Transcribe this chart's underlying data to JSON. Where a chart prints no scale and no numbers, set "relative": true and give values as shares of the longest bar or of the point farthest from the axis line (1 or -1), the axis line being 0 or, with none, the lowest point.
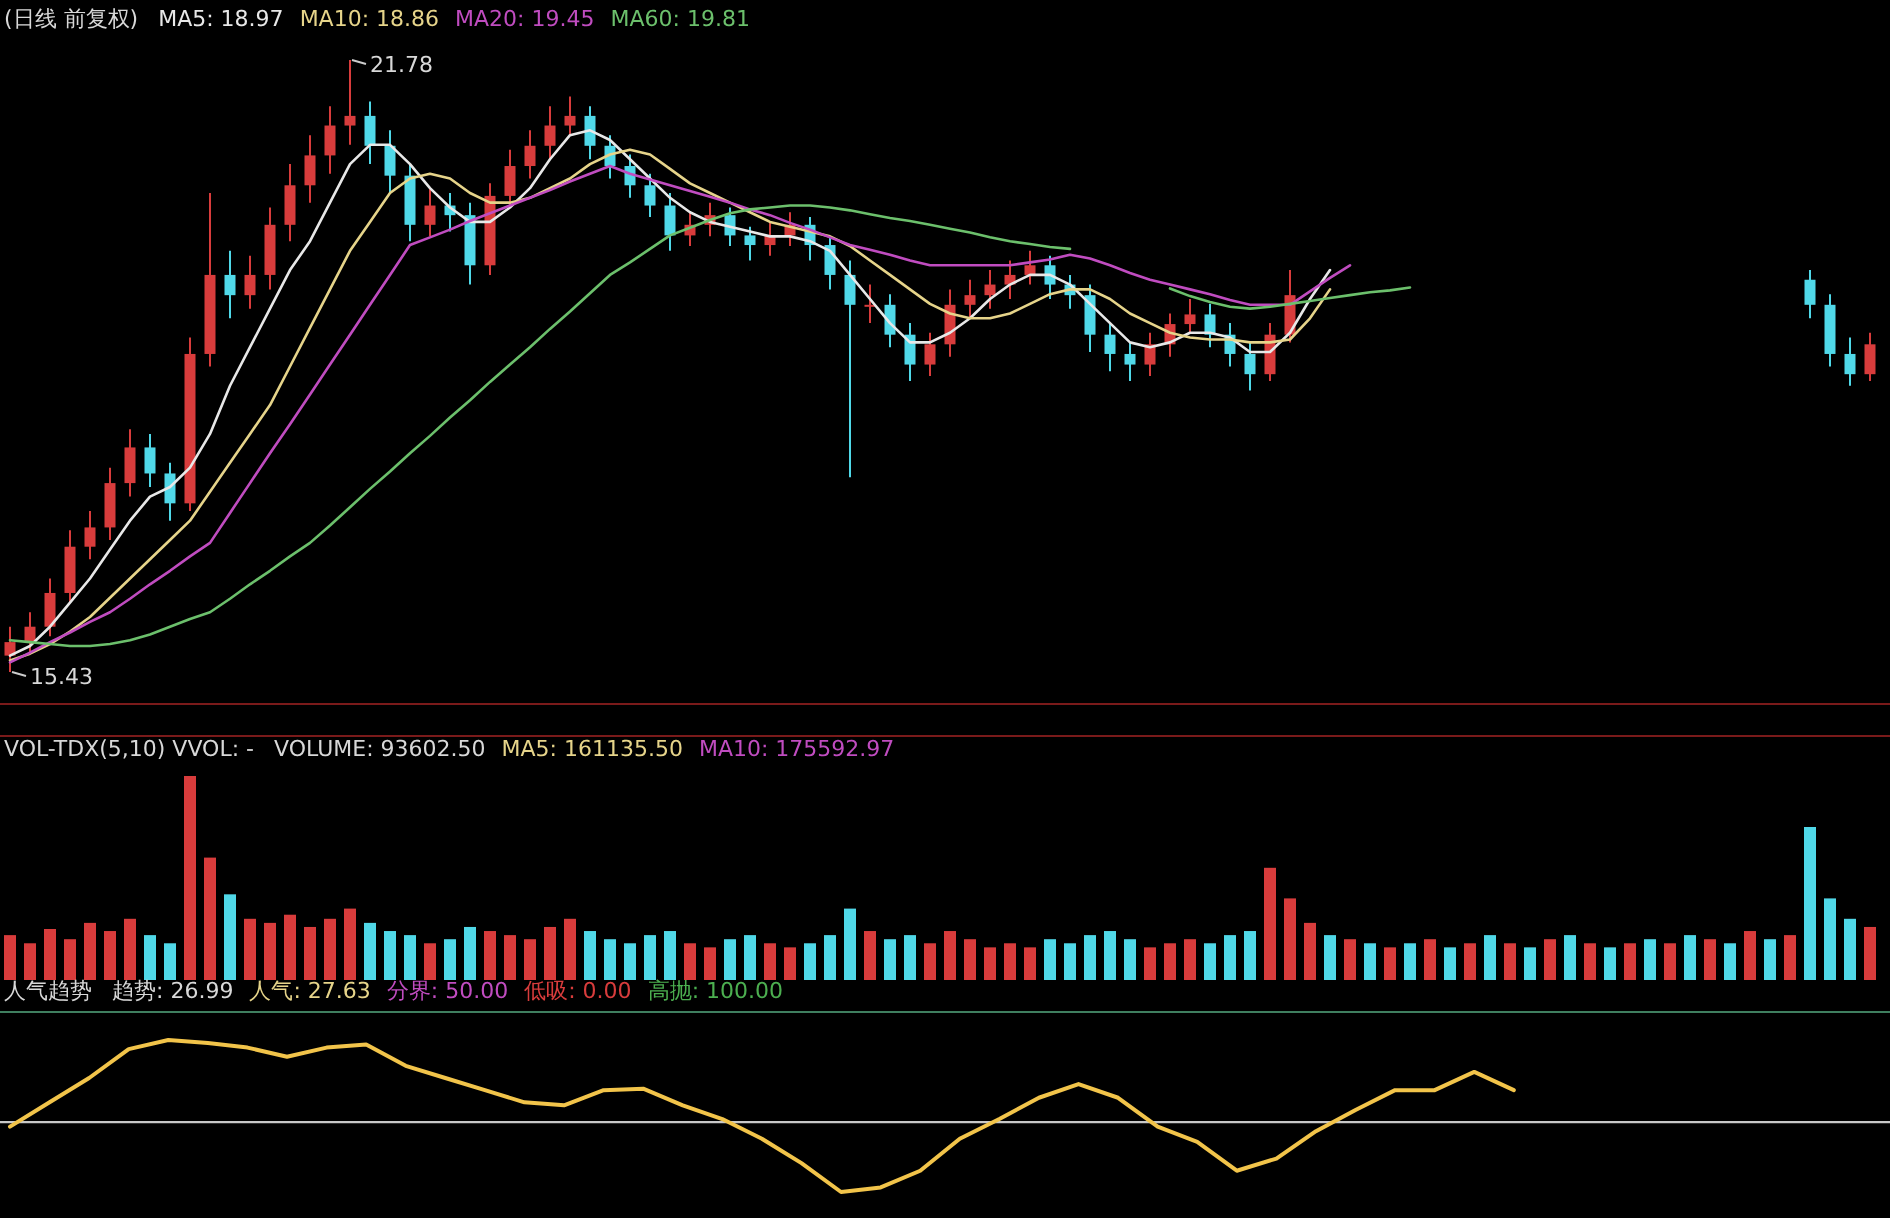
{
  "chart_data": [
    {
      "type": "candlestick",
      "title": "(日线 前复权)",
      "legend": "top left",
      "categories": [
        null,
        null,
        null,
        null,
        null,
        null,
        null,
        null,
        null,
        null,
        null,
        null,
        null,
        null,
        null,
        null,
        null,
        null,
        null,
        null,
        null,
        null,
        null,
        null,
        null,
        null,
        null,
        null,
        null,
        null,
        null,
        null,
        null,
        null,
        null,
        null,
        null,
        null,
        null,
        null,
        null,
        null,
        null,
        null,
        null,
        null,
        null,
        null,
        null,
        null,
        null,
        null,
        null,
        null,
        null,
        null,
        null,
        null,
        null,
        null,
        null,
        null,
        null,
        null,
        null,
        null,
        null,
        null,
        null,
        null,
        null,
        null,
        null,
        null,
        null,
        null,
        null,
        null,
        null,
        null,
        null,
        null,
        null,
        null,
        null,
        null,
        null,
        null,
        null,
        null,
        null,
        null,
        null,
        null
      ],
      "ohlc": [
        [
          15.6,
          15.9,
          15.43,
          15.74
        ],
        [
          15.74,
          16.05,
          15.62,
          15.9
        ],
        [
          15.9,
          16.4,
          15.8,
          16.25
        ],
        [
          16.25,
          16.9,
          16.15,
          16.73
        ],
        [
          16.73,
          17.1,
          16.6,
          16.93
        ],
        [
          16.93,
          17.55,
          16.8,
          17.39
        ],
        [
          17.39,
          17.95,
          17.25,
          17.76
        ],
        [
          17.76,
          17.9,
          17.35,
          17.49
        ],
        [
          17.49,
          17.6,
          17.0,
          17.18
        ],
        [
          17.18,
          18.9,
          17.1,
          18.73
        ],
        [
          18.73,
          20.4,
          18.6,
          19.55
        ],
        [
          19.55,
          19.8,
          19.1,
          19.34
        ],
        [
          19.34,
          19.75,
          19.2,
          19.55
        ],
        [
          19.55,
          20.25,
          19.4,
          20.07
        ],
        [
          20.07,
          20.7,
          19.9,
          20.48
        ],
        [
          20.48,
          21.0,
          20.3,
          20.79
        ],
        [
          20.79,
          21.3,
          20.6,
          21.1
        ],
        [
          21.1,
          21.78,
          20.9,
          21.2
        ],
        [
          21.2,
          21.35,
          20.7,
          20.89
        ],
        [
          20.89,
          21.05,
          20.4,
          20.58
        ],
        [
          20.58,
          20.7,
          19.9,
          20.07
        ],
        [
          20.07,
          20.45,
          19.95,
          20.27
        ],
        [
          20.27,
          20.4,
          20.0,
          20.17
        ],
        [
          20.17,
          20.3,
          19.45,
          19.65
        ],
        [
          19.65,
          20.5,
          19.55,
          20.37
        ],
        [
          20.37,
          20.85,
          20.25,
          20.68
        ],
        [
          20.68,
          21.05,
          20.55,
          20.89
        ],
        [
          20.89,
          21.3,
          20.75,
          21.1
        ],
        [
          21.1,
          21.4,
          21.0,
          21.2
        ],
        [
          21.2,
          21.3,
          20.75,
          20.89
        ],
        [
          20.89,
          21.0,
          20.55,
          20.68
        ],
        [
          20.68,
          20.8,
          20.35,
          20.48
        ],
        [
          20.48,
          20.6,
          20.15,
          20.27
        ],
        [
          20.27,
          20.4,
          19.8,
          19.96
        ],
        [
          19.96,
          20.2,
          19.85,
          20.07
        ],
        [
          20.07,
          20.3,
          19.95,
          20.17
        ],
        [
          20.17,
          20.25,
          19.85,
          19.96
        ],
        [
          19.96,
          20.05,
          19.7,
          19.86
        ],
        [
          19.86,
          20.1,
          19.75,
          19.96
        ],
        [
          19.96,
          20.2,
          19.85,
          20.07
        ],
        [
          20.07,
          20.15,
          19.7,
          19.86
        ],
        [
          19.86,
          19.95,
          19.4,
          19.55
        ],
        [
          19.55,
          19.7,
          17.45,
          19.24
        ],
        [
          19.24,
          19.45,
          19.05,
          19.24
        ],
        [
          19.24,
          19.35,
          18.8,
          18.93
        ],
        [
          18.93,
          19.05,
          18.45,
          18.62
        ],
        [
          18.62,
          18.95,
          18.5,
          18.83
        ],
        [
          18.83,
          19.4,
          18.7,
          19.24
        ],
        [
          19.24,
          19.5,
          19.1,
          19.34
        ],
        [
          19.34,
          19.6,
          19.2,
          19.45
        ],
        [
          19.45,
          19.7,
          19.3,
          19.55
        ],
        [
          19.55,
          19.8,
          19.45,
          19.65
        ],
        [
          19.65,
          19.75,
          19.3,
          19.45
        ],
        [
          19.45,
          19.55,
          19.2,
          19.34
        ],
        [
          19.34,
          19.45,
          18.75,
          18.93
        ],
        [
          18.93,
          19.05,
          18.55,
          18.73
        ],
        [
          18.73,
          18.85,
          18.45,
          18.62
        ],
        [
          18.62,
          18.95,
          18.5,
          18.83
        ],
        [
          18.83,
          19.15,
          18.7,
          19.04
        ],
        [
          19.04,
          19.3,
          18.95,
          19.14
        ],
        [
          19.14,
          19.25,
          18.8,
          18.93
        ],
        [
          18.93,
          19.05,
          18.6,
          18.73
        ],
        [
          18.73,
          18.85,
          18.35,
          18.52
        ],
        [
          18.52,
          19.05,
          18.45,
          18.93
        ],
        [
          18.93,
          19.6,
          18.85,
          19.34
        ],
        null,
        null,
        null,
        null,
        null,
        null,
        null,
        null,
        null,
        null,
        null,
        null,
        null,
        null,
        null,
        null,
        null,
        null,
        null,
        null,
        null,
        null,
        null,
        null,
        null,
        [
          19.5,
          19.6,
          19.1,
          19.24
        ],
        [
          19.24,
          19.35,
          18.6,
          18.73
        ],
        [
          18.73,
          18.9,
          18.4,
          18.52
        ],
        [
          18.52,
          18.95,
          18.45,
          18.83
        ]
      ],
      "series": [
        {
          "name": "MA5: 18.97",
          "type": "line",
          "color": "#e8e8e8",
          "values": [
            15.6,
            15.7,
            15.9,
            16.15,
            16.4,
            16.7,
            17.0,
            17.25,
            17.35,
            17.55,
            17.9,
            18.4,
            18.8,
            19.2,
            19.6,
            19.9,
            20.3,
            20.7,
            20.9,
            20.9,
            20.7,
            20.45,
            20.25,
            20.1,
            20.1,
            20.25,
            20.45,
            20.75,
            21.0,
            21.05,
            20.95,
            20.75,
            20.55,
            20.35,
            20.2,
            20.1,
            20.05,
            20.0,
            19.95,
            19.95,
            19.9,
            19.8,
            19.55,
            19.3,
            19.05,
            18.85,
            18.85,
            18.95,
            19.1,
            19.3,
            19.45,
            19.55,
            19.55,
            19.45,
            19.25,
            19.05,
            18.85,
            18.8,
            18.85,
            18.95,
            18.95,
            18.9,
            18.75,
            18.75,
            18.95,
            19.3,
            19.6,
            null,
            null,
            null,
            null,
            null,
            null,
            null,
            null,
            null,
            null,
            null,
            null,
            null,
            null,
            null,
            null,
            null,
            null,
            null,
            null,
            null,
            null,
            null,
            null,
            null,
            null,
            null
          ]
        },
        {
          "name": "MA10: 18.86",
          "type": "line",
          "color": "#e6d48a",
          "values": [
            15.55,
            15.62,
            15.72,
            15.85,
            16.0,
            16.2,
            16.4,
            16.6,
            16.8,
            17.0,
            17.3,
            17.6,
            17.9,
            18.2,
            18.6,
            19.0,
            19.4,
            19.8,
            20.1,
            20.4,
            20.55,
            20.6,
            20.55,
            20.4,
            20.3,
            20.3,
            20.35,
            20.45,
            20.55,
            20.7,
            20.8,
            20.85,
            20.8,
            20.65,
            20.5,
            20.4,
            20.3,
            20.2,
            20.1,
            20.05,
            20.0,
            19.95,
            19.85,
            19.7,
            19.55,
            19.4,
            19.25,
            19.15,
            19.1,
            19.1,
            19.15,
            19.25,
            19.35,
            19.4,
            19.4,
            19.3,
            19.15,
            19.05,
            18.95,
            18.9,
            18.88,
            18.88,
            18.85,
            18.85,
            18.88,
            19.1,
            19.4,
            null,
            null,
            null,
            null,
            null,
            null,
            null,
            null,
            null,
            null,
            null,
            null,
            null,
            null,
            null,
            null,
            null,
            null,
            null,
            null,
            null,
            null,
            null,
            null,
            null,
            null,
            null
          ]
        },
        {
          "name": "MA20: 19.45",
          "type": "line",
          "color": "#c04cc0",
          "values": [
            15.53,
            15.63,
            15.74,
            15.84,
            15.95,
            16.05,
            16.19,
            16.34,
            16.48,
            16.63,
            16.77,
            17.08,
            17.39,
            17.7,
            18.0,
            18.31,
            18.62,
            18.93,
            19.24,
            19.55,
            19.86,
            19.94,
            20.02,
            20.11,
            20.19,
            20.27,
            20.35,
            20.43,
            20.52,
            20.6,
            20.68,
            20.6,
            20.54,
            20.48,
            20.42,
            20.36,
            20.3,
            20.23,
            20.17,
            20.09,
            20.02,
            19.94,
            19.86,
            19.81,
            19.76,
            19.7,
            19.65,
            19.65,
            19.65,
            19.65,
            19.65,
            19.68,
            19.71,
            19.76,
            19.72,
            19.65,
            19.57,
            19.5,
            19.45,
            19.4,
            19.35,
            19.29,
            19.24,
            19.24,
            19.24,
            19.38,
            19.52,
            19.65,
            null,
            null,
            null,
            null,
            null,
            null,
            null,
            null,
            null,
            null,
            null,
            null,
            null,
            null,
            null,
            null,
            null,
            null,
            null,
            null,
            null,
            null,
            null,
            null,
            null,
            null
          ]
        },
        {
          "name": "MA60: 19.81",
          "type": "line",
          "color": "#6cc06c",
          "values": [
            15.76,
            15.74,
            15.72,
            15.7,
            15.7,
            15.72,
            15.76,
            15.82,
            15.9,
            15.98,
            16.05,
            16.19,
            16.34,
            16.48,
            16.63,
            16.77,
            16.95,
            17.14,
            17.33,
            17.51,
            17.7,
            17.88,
            18.07,
            18.25,
            18.44,
            18.62,
            18.8,
            18.99,
            19.17,
            19.36,
            19.55,
            19.68,
            19.82,
            19.96,
            20.04,
            20.12,
            20.19,
            20.23,
            20.25,
            20.27,
            20.27,
            20.25,
            20.22,
            20.18,
            20.14,
            20.11,
            20.07,
            20.03,
            19.99,
            19.94,
            19.9,
            19.87,
            19.84,
            19.82,
            null,
            null,
            null,
            null,
            19.41,
            19.33,
            19.27,
            19.22,
            19.2,
            19.22,
            19.25,
            19.28,
            19.31,
            19.34,
            19.37,
            19.39,
            19.42,
            null,
            null,
            null,
            null,
            null,
            null,
            null,
            null,
            null,
            null,
            null,
            null,
            null,
            null,
            null,
            null,
            null,
            null,
            null,
            null,
            null,
            null,
            null
          ]
        }
      ],
      "annotations": [
        "21.78",
        "15.43"
      ]
    },
    {
      "type": "bar",
      "relative": true,
      "title": "VOL-TDX(5,10) VVOL: -",
      "annotations": [
        "VOLUME: 93602.50",
        "MA5: 161135.50",
        "MA10: 175592.97"
      ],
      "categories": [
        null,
        null,
        null,
        null,
        null,
        null,
        null,
        null,
        null,
        null,
        null,
        null,
        null,
        null,
        null,
        null,
        null,
        null,
        null,
        null,
        null,
        null,
        null,
        null,
        null,
        null,
        null,
        null,
        null,
        null,
        null,
        null,
        null,
        null,
        null,
        null,
        null,
        null,
        null,
        null,
        null,
        null,
        null,
        null,
        null,
        null,
        null,
        null,
        null,
        null,
        null,
        null,
        null,
        null,
        null,
        null,
        null,
        null,
        null,
        null,
        null,
        null,
        null,
        null,
        null,
        null,
        null,
        null,
        null,
        null,
        null,
        null,
        null,
        null,
        null,
        null,
        null,
        null,
        null,
        null,
        null,
        null,
        null,
        null,
        null,
        null,
        null,
        null,
        null,
        null,
        null,
        null,
        null,
        null
      ],
      "values": [
        0.22,
        0.18,
        0.25,
        0.2,
        0.28,
        0.24,
        0.3,
        0.22,
        0.18,
        1.0,
        0.6,
        0.42,
        0.3,
        0.28,
        0.32,
        0.26,
        0.3,
        0.35,
        0.28,
        0.24,
        0.22,
        0.18,
        0.2,
        0.26,
        0.24,
        0.22,
        0.2,
        0.26,
        0.3,
        0.24,
        0.2,
        0.18,
        0.22,
        0.24,
        0.18,
        0.16,
        0.2,
        0.22,
        0.18,
        0.16,
        0.18,
        0.22,
        0.35,
        0.24,
        0.2,
        0.22,
        0.18,
        0.24,
        0.2,
        0.16,
        0.18,
        0.16,
        0.2,
        0.18,
        0.22,
        0.24,
        0.2,
        0.16,
        0.18,
        0.2,
        0.18,
        0.22,
        0.24,
        0.55,
        0.4,
        0.28,
        0.22,
        0.2,
        0.18,
        0.16,
        0.18,
        0.2,
        0.16,
        0.18,
        0.22,
        0.18,
        0.16,
        0.2,
        0.22,
        0.18,
        0.16,
        0.18,
        0.2,
        0.18,
        0.22,
        0.2,
        0.18,
        0.24,
        0.2,
        0.22,
        0.75,
        0.4,
        0.3,
        0.26
      ],
      "colors": [
        "#d83c3c",
        "#d83c3c",
        "#d83c3c",
        "#d83c3c",
        "#d83c3c",
        "#d83c3c",
        "#d83c3c",
        "#50d8e8",
        "#50d8e8",
        "#d83c3c",
        "#d83c3c",
        "#50d8e8",
        "#d83c3c",
        "#d83c3c",
        "#d83c3c",
        "#d83c3c",
        "#d83c3c",
        "#d83c3c",
        "#50d8e8",
        "#50d8e8",
        "#50d8e8",
        "#d83c3c",
        "#50d8e8",
        "#50d8e8",
        "#d83c3c",
        "#d83c3c",
        "#d83c3c",
        "#d83c3c",
        "#d83c3c",
        "#50d8e8",
        "#50d8e8",
        "#50d8e8",
        "#50d8e8",
        "#50d8e8",
        "#d83c3c",
        "#d83c3c",
        "#50d8e8",
        "#50d8e8",
        "#d83c3c",
        "#d83c3c",
        "#50d8e8",
        "#50d8e8",
        "#50d8e8",
        "#d83c3c",
        "#50d8e8",
        "#50d8e8",
        "#d83c3c",
        "#d83c3c",
        "#d83c3c",
        "#d83c3c",
        "#d83c3c",
        "#d83c3c",
        "#50d8e8",
        "#50d8e8",
        "#50d8e8",
        "#50d8e8",
        "#50d8e8",
        "#d83c3c",
        "#d83c3c",
        "#d83c3c",
        "#50d8e8",
        "#50d8e8",
        "#50d8e8",
        "#d83c3c",
        "#d83c3c",
        "#d83c3c",
        "#50d8e8",
        "#d83c3c",
        "#50d8e8",
        "#d83c3c",
        "#50d8e8",
        "#d83c3c",
        "#50d8e8",
        "#d83c3c",
        "#50d8e8",
        "#d83c3c",
        "#50d8e8",
        "#d83c3c",
        "#50d8e8",
        "#d83c3c",
        "#50d8e8",
        "#d83c3c",
        "#50d8e8",
        "#d83c3c",
        "#50d8e8",
        "#d83c3c",
        "#50d8e8",
        "#d83c3c",
        "#50d8e8",
        "#d83c3c",
        "#50d8e8",
        "#50d8e8",
        "#50d8e8",
        "#d83c3c"
      ]
    },
    {
      "type": "line",
      "relative": true,
      "title": "人气趋势",
      "annotations": [
        "趋势: 26.99",
        "人气: 27.63",
        "分界: 50.00",
        "低吸: 0.00",
        "高抛: 100.00"
      ],
      "categories": [
        null,
        null,
        null,
        null,
        null,
        null,
        null,
        null,
        null,
        null,
        null,
        null,
        null,
        null,
        null,
        null,
        null,
        null,
        null,
        null,
        null,
        null,
        null,
        null,
        null,
        null,
        null,
        null,
        null,
        null,
        null,
        null,
        null,
        null,
        null,
        null,
        null,
        null,
        null,
        null,
        null,
        null,
        null,
        null,
        null,
        null,
        null,
        null
      ],
      "series": [
        {
          "color": "#f2c44a",
          "values": [
            0.43,
            0.59,
            0.75,
            0.94,
            1,
            0.98,
            0.95,
            0.89,
            0.95,
            0.97,
            0.83,
            0.75,
            0.67,
            0.59,
            0.57,
            0.67,
            0.68,
            0.57,
            0.48,
            0.35,
            0.19,
            0,
            0.03,
            0.14,
            0.35,
            0.48,
            0.62,
            0.71,
            0.62,
            0.43,
            0.33,
            0.14,
            0.22,
            0.4,
            0.54,
            0.67,
            0.67,
            0.79,
            0.67,
            null,
            null,
            null,
            null,
            null,
            null,
            null,
            null,
            null
          ]
        }
      ],
      "ref_lines": [
        {
          "axis": "y",
          "value": 0.46,
          "color": "#c8c8c8"
        }
      ]
    }
  ]
}
